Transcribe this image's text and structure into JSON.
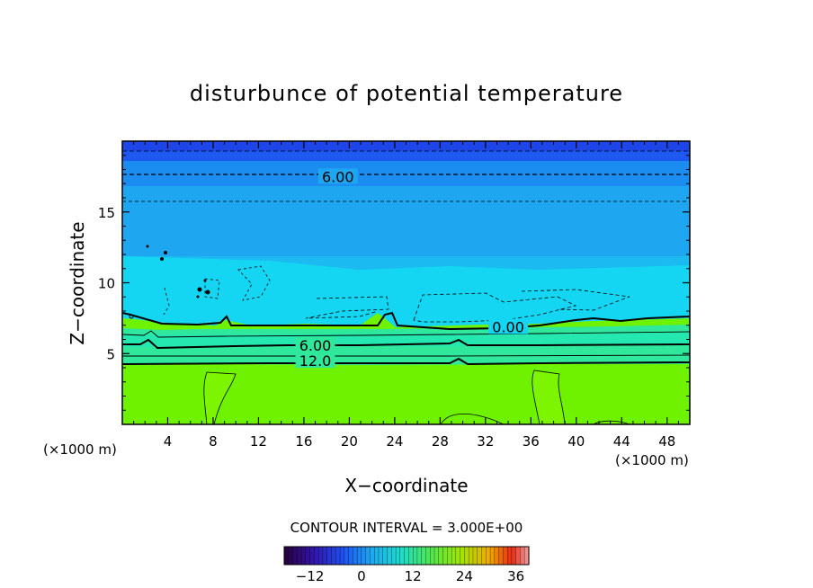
{
  "chart_data": {
    "type": "heatmap",
    "title": "disturbunce of potential temperature",
    "xlabel": "X−coordinate",
    "ylabel": "Z−coordinate",
    "x_unit_left": "(×1000 m)",
    "x_unit_right": "(×1000 m)",
    "xlim": [
      0,
      50
    ],
    "ylim": [
      0,
      20
    ],
    "x_ticks": [
      4,
      8,
      12,
      16,
      20,
      24,
      28,
      32,
      36,
      40,
      44,
      48
    ],
    "y_ticks": [
      5,
      10,
      15
    ],
    "contour_labels": [
      {
        "text": "6.00",
        "x": 19,
        "y": 17.5
      },
      {
        "text": "0.00",
        "x": 34,
        "y": 6.9
      },
      {
        "text": "6.00",
        "x": 17,
        "y": 5.6
      },
      {
        "text": "12.0",
        "x": 17,
        "y": 4.5
      }
    ],
    "contour_interval_text": "CONTOUR INTERVAL = 3.000E+00",
    "colorbar": {
      "min": -18,
      "max": 39,
      "ticks": [
        "-12",
        "0",
        "12",
        "24",
        "36"
      ],
      "tick_values": [
        -12,
        0,
        12,
        24,
        36
      ]
    },
    "colors": {
      "top_layer": "#1f58f0",
      "upper_layer": "#1fa0f0",
      "middle_layer": "#14d6f2",
      "lower_transition": "#2fe89c",
      "surface_layer": "#6ef200"
    }
  }
}
